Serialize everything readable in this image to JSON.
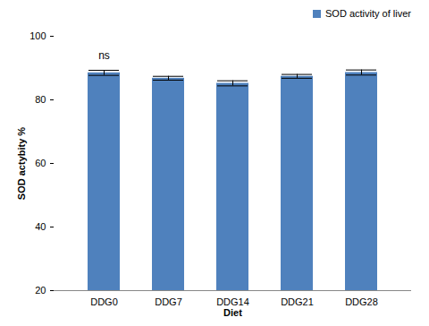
{
  "chart_data": {
    "type": "bar",
    "categories": [
      "DDG0",
      "DDG7",
      "DDG14",
      "DDG21",
      "DDG28"
    ],
    "series": [
      {
        "name": "SOD activity of liver",
        "color": "#4f81bd",
        "values": [
          88.5,
          86.8,
          85.2,
          87.4,
          88.6
        ],
        "errors": [
          0.8,
          0.6,
          0.8,
          0.6,
          0.8
        ]
      }
    ],
    "x_label": "Diet",
    "y_label": "SOD actybity %",
    "ylim": [
      20,
      100
    ],
    "yticks": [
      20,
      40,
      60,
      80,
      100
    ],
    "grid": false,
    "legend": "top-right",
    "annotations": [
      {
        "text": "ns",
        "category": "DDG0"
      }
    ]
  }
}
